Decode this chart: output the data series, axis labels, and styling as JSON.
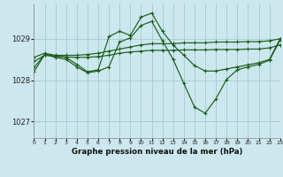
{
  "title": "Graphe pression niveau de la mer (hPa)",
  "background_color": "#cce8ee",
  "grid_color": "#aacdd6",
  "line_color": "#1a5c1a",
  "ylim": [
    1026.6,
    1029.85
  ],
  "xlim": [
    0,
    23
  ],
  "yticks": [
    1027,
    1028,
    1029
  ],
  "xticks": [
    0,
    1,
    2,
    3,
    4,
    5,
    6,
    7,
    8,
    9,
    10,
    11,
    12,
    13,
    14,
    15,
    16,
    17,
    18,
    19,
    20,
    21,
    22,
    23
  ],
  "series": [
    {
      "x": [
        0,
        1,
        2,
        3,
        4,
        5,
        6,
        7,
        8,
        9,
        10,
        11,
        12,
        13,
        14,
        15,
        16,
        17,
        18,
        19,
        20,
        21,
        22,
        23
      ],
      "y": [
        1028.55,
        1028.65,
        1028.6,
        1028.6,
        1028.6,
        1028.62,
        1028.65,
        1028.7,
        1028.75,
        1028.8,
        1028.85,
        1028.88,
        1028.88,
        1028.88,
        1028.9,
        1028.9,
        1028.9,
        1028.92,
        1028.92,
        1028.92,
        1028.93,
        1028.93,
        1028.95,
        1029.0
      ]
    },
    {
      "x": [
        0,
        1,
        2,
        3,
        4,
        5,
        6,
        7,
        8,
        9,
        10,
        11,
        12,
        13,
        14,
        15,
        16,
        17,
        18,
        19,
        20,
        21,
        22,
        23
      ],
      "y": [
        1028.45,
        1028.6,
        1028.58,
        1028.56,
        1028.55,
        1028.55,
        1028.57,
        1028.6,
        1028.65,
        1028.68,
        1028.7,
        1028.72,
        1028.72,
        1028.72,
        1028.73,
        1028.73,
        1028.73,
        1028.74,
        1028.74,
        1028.74,
        1028.75,
        1028.75,
        1028.78,
        1028.85
      ]
    },
    {
      "x": [
        0,
        1,
        2,
        3,
        4,
        5,
        6,
        7,
        8,
        9,
        10,
        11,
        12,
        13,
        14,
        15,
        16,
        17,
        18,
        19,
        20,
        21,
        22,
        23
      ],
      "y": [
        1028.3,
        1028.62,
        1028.58,
        1028.55,
        1028.38,
        1028.2,
        1028.25,
        1029.05,
        1029.18,
        1029.08,
        1029.52,
        1029.62,
        1029.18,
        1028.85,
        1028.6,
        1028.35,
        1028.22,
        1028.22,
        1028.27,
        1028.32,
        1028.37,
        1028.42,
        1028.5,
        1029.0
      ]
    },
    {
      "x": [
        0,
        1,
        2,
        3,
        4,
        5,
        6,
        7,
        8,
        9,
        10,
        11,
        12,
        13,
        14,
        15,
        16,
        17,
        18,
        19,
        20,
        21,
        22,
        23
      ],
      "y": [
        1028.2,
        1028.62,
        1028.55,
        1028.5,
        1028.32,
        1028.18,
        1028.22,
        1028.32,
        1028.92,
        1029.02,
        1029.32,
        1029.42,
        1028.95,
        1028.5,
        1027.92,
        1027.35,
        1027.2,
        1027.55,
        1028.02,
        1028.25,
        1028.32,
        1028.38,
        1028.48,
        1028.97
      ]
    }
  ]
}
